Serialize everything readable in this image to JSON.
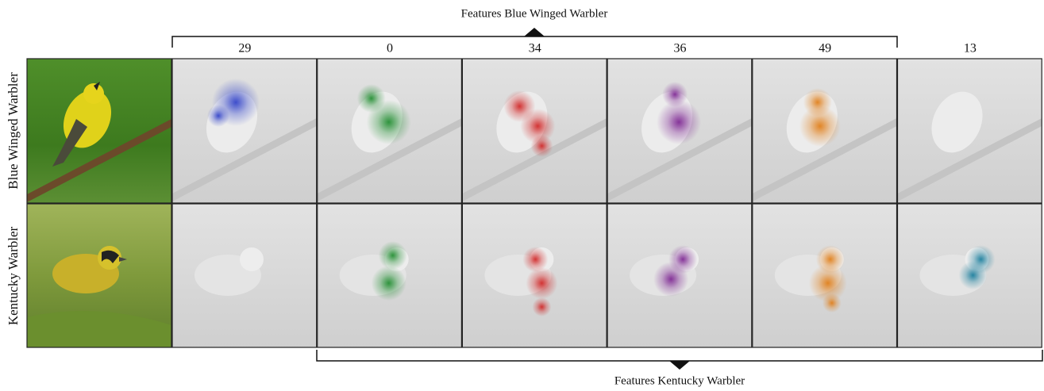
{
  "header": {
    "title": "Features Blue Winged Warbler"
  },
  "columns": [
    29,
    0,
    34,
    36,
    49,
    13
  ],
  "rows": [
    {
      "label": "Blue Winged Warbler"
    },
    {
      "label": "Kentucky Warbler"
    }
  ],
  "footer": {
    "title": "Features Kentucky Warbler"
  }
}
